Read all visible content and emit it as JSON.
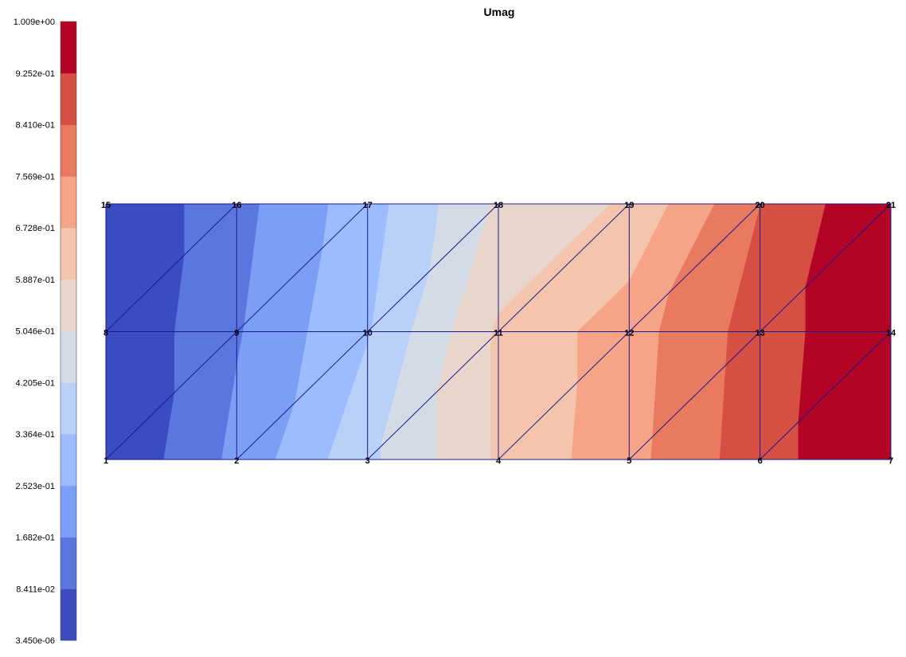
{
  "chart_data": {
    "type": "heatmap",
    "title": "Umag",
    "colorbar": {
      "position": "left",
      "tick_labels": [
        "1.009e+00",
        "9.252e-01",
        "8.410e-01",
        "7.569e-01",
        "6.728e-01",
        "5.887e-01",
        "5.046e-01",
        "4.205e-01",
        "3.364e-01",
        "2.523e-01",
        "1.682e-01",
        "8.411e-02",
        "3.450e-06"
      ],
      "min": 3.45e-06,
      "max": 1.009,
      "colors": [
        "#3b4cc0",
        "#5a77e0",
        "#7b9ff5",
        "#9bbcfe",
        "#b9d0f9",
        "#d3dbe7",
        "#e8d6cc",
        "#f5c4ac",
        "#f5a487",
        "#e97a5f",
        "#d55042",
        "#b40426"
      ]
    },
    "x": [
      0,
      1,
      2,
      3,
      4,
      5,
      6
    ],
    "y": [
      0,
      1,
      2
    ],
    "nodes": [
      {
        "id": "1",
        "x": 0,
        "y": 0,
        "value": 3.45e-06
      },
      {
        "id": "2",
        "x": 1,
        "y": 0,
        "value": 0.19
      },
      {
        "id": "3",
        "x": 2,
        "y": 0,
        "value": 0.4
      },
      {
        "id": "4",
        "x": 3,
        "y": 0,
        "value": 0.6
      },
      {
        "id": "5",
        "x": 4,
        "y": 0,
        "value": 0.73
      },
      {
        "id": "6",
        "x": 5,
        "y": 0,
        "value": 0.89
      },
      {
        "id": "7",
        "x": 6,
        "y": 0,
        "value": 1.009
      },
      {
        "id": "8",
        "x": 0,
        "y": 1,
        "value": 3.45e-06
      },
      {
        "id": "9",
        "x": 1,
        "y": 1,
        "value": 0.16
      },
      {
        "id": "10",
        "x": 2,
        "y": 1,
        "value": 0.33
      },
      {
        "id": "11",
        "x": 3,
        "y": 1,
        "value": 0.6
      },
      {
        "id": "12",
        "x": 4,
        "y": 1,
        "value": 0.72
      },
      {
        "id": "13",
        "x": 5,
        "y": 1,
        "value": 0.88
      },
      {
        "id": "14",
        "x": 6,
        "y": 1,
        "value": 1.009
      },
      {
        "id": "15",
        "x": 0,
        "y": 2,
        "value": 3.45e-06
      },
      {
        "id": "16",
        "x": 1,
        "y": 2,
        "value": 0.14
      },
      {
        "id": "17",
        "x": 2,
        "y": 2,
        "value": 0.3
      },
      {
        "id": "18",
        "x": 3,
        "y": 2,
        "value": 0.52
      },
      {
        "id": "19",
        "x": 4,
        "y": 2,
        "value": 0.6
      },
      {
        "id": "20",
        "x": 5,
        "y": 2,
        "value": 0.84
      },
      {
        "id": "21",
        "x": 6,
        "y": 2,
        "value": 1.009
      }
    ],
    "triangles": [
      [
        "1",
        "2",
        "9"
      ],
      [
        "1",
        "9",
        "8"
      ],
      [
        "2",
        "3",
        "10"
      ],
      [
        "2",
        "10",
        "9"
      ],
      [
        "3",
        "4",
        "11"
      ],
      [
        "3",
        "11",
        "10"
      ],
      [
        "4",
        "5",
        "12"
      ],
      [
        "4",
        "12",
        "11"
      ],
      [
        "5",
        "6",
        "13"
      ],
      [
        "5",
        "13",
        "12"
      ],
      [
        "6",
        "7",
        "14"
      ],
      [
        "6",
        "14",
        "13"
      ],
      [
        "8",
        "9",
        "16"
      ],
      [
        "8",
        "16",
        "15"
      ],
      [
        "9",
        "10",
        "17"
      ],
      [
        "9",
        "17",
        "16"
      ],
      [
        "10",
        "11",
        "18"
      ],
      [
        "10",
        "18",
        "17"
      ],
      [
        "11",
        "12",
        "19"
      ],
      [
        "11",
        "19",
        "18"
      ],
      [
        "12",
        "13",
        "20"
      ],
      [
        "12",
        "20",
        "19"
      ],
      [
        "13",
        "14",
        "21"
      ],
      [
        "13",
        "21",
        "20"
      ]
    ],
    "mesh_color": "#1a1a8c",
    "grid": false
  }
}
